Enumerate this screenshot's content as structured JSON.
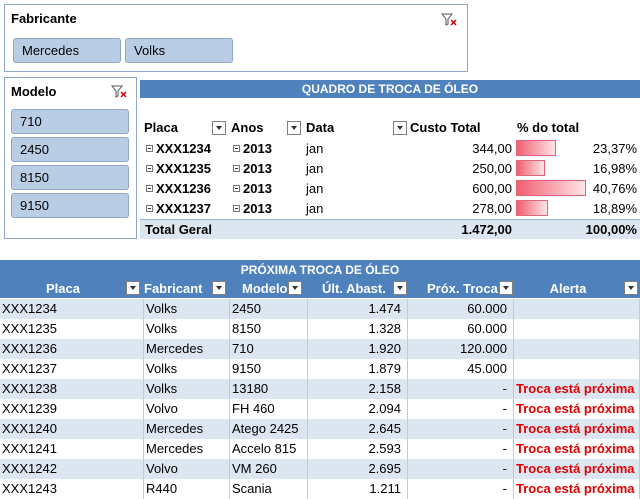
{
  "slicer_fabricante": {
    "title": "Fabricante",
    "items": [
      "Mercedes",
      "Volks"
    ]
  },
  "slicer_modelo": {
    "title": "Modelo",
    "items": [
      "710",
      "2450",
      "8150",
      "9150"
    ]
  },
  "pivot": {
    "title": "QUADRO DE TROCA DE ÓLEO",
    "headers": {
      "placa": "Placa",
      "anos": "Anos",
      "data": "Data",
      "custo": "Custo Total",
      "pct": "% do total"
    },
    "rows": [
      {
        "placa": "XXX1234",
        "ano": "2013",
        "data": "jan",
        "custo": "344,00",
        "pct": "23,37%",
        "pct_value": 23.37
      },
      {
        "placa": "XXX1235",
        "ano": "2013",
        "data": "jan",
        "custo": "250,00",
        "pct": "16,98%",
        "pct_value": 16.98
      },
      {
        "placa": "XXX1236",
        "ano": "2013",
        "data": "jan",
        "custo": "600,00",
        "pct": "40,76%",
        "pct_value": 40.76
      },
      {
        "placa": "XXX1237",
        "ano": "2013",
        "data": "jan",
        "custo": "278,00",
        "pct": "18,89%",
        "pct_value": 18.89
      }
    ],
    "total": {
      "label": "Total Geral",
      "custo": "1.472,00",
      "pct": "100,00%"
    }
  },
  "table": {
    "title": "PRÓXIMA TROCA DE ÓLEO",
    "headers": [
      "Placa",
      "Fabricant",
      "Modelo",
      "Últ. Abast.",
      "Próx. Troca",
      "Alerta"
    ],
    "rows": [
      [
        "XXX1234",
        "Volks",
        "2450",
        "1.474",
        "60.000",
        ""
      ],
      [
        "XXX1235",
        "Volks",
        "8150",
        "1.328",
        "60.000",
        ""
      ],
      [
        "XXX1236",
        "Mercedes",
        "710",
        "1.920",
        "120.000",
        ""
      ],
      [
        "XXX1237",
        "Volks",
        "9150",
        "1.879",
        "45.000",
        ""
      ],
      [
        "XXX1238",
        "Volks",
        "13180",
        "2.158",
        "-",
        "Troca está próxima"
      ],
      [
        "XXX1239",
        "Volvo",
        "FH 460",
        "2.094",
        "-",
        "Troca está próxima"
      ],
      [
        "XXX1240",
        "Mercedes",
        "Atego 2425",
        "2.645",
        "-",
        "Troca está próxima"
      ],
      [
        "XXX1241",
        "Mercedes",
        "Accelo 815",
        "2.593",
        "-",
        "Troca está próxima"
      ],
      [
        "XXX1242",
        "Volvo",
        "VM 260",
        "2.695",
        "-",
        "Troca está próxima"
      ],
      [
        "XXX1243",
        "R440",
        "Scania",
        "1.211",
        "-",
        "Troca está próxima"
      ]
    ]
  },
  "colors": {
    "header_blue": "#4f81bd",
    "band_blue": "#dce6f1",
    "slicer_item": "#b9cde5",
    "alert_red": "#e00000",
    "databar_red": "#f16070"
  }
}
